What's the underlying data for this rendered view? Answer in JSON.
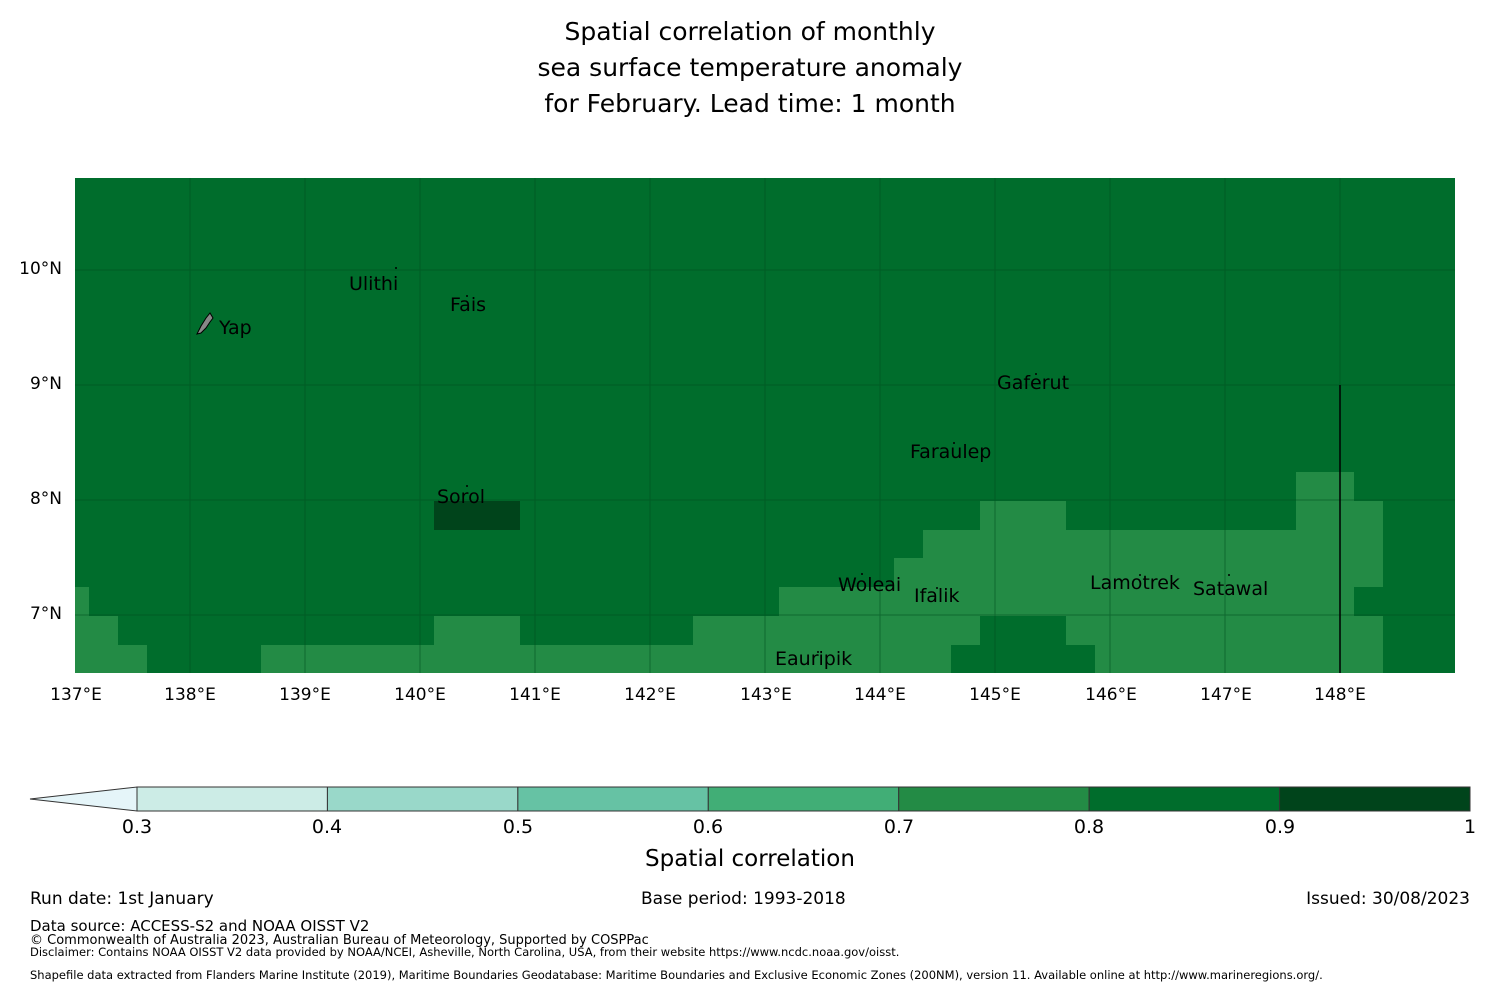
{
  "title": {
    "line1": "Spatial correlation of monthly",
    "line2": "sea surface temperature anomaly",
    "line3": "for February. Lead time: 1 month"
  },
  "map": {
    "lat_labels": [
      "10°N",
      "9°N",
      "8°N",
      "7°N"
    ],
    "lon_labels": [
      "137°E",
      "138°E",
      "139°E",
      "140°E",
      "141°E",
      "142°E",
      "143°E",
      "144°E",
      "145°E",
      "146°E",
      "147°E",
      "148°E"
    ],
    "places": [
      "Ulithi",
      "Fais",
      "Yap",
      "Gaferut",
      "Faraulep",
      "Sorol",
      "Woleai",
      "Ifalik",
      "Lamotrek",
      "Satawal",
      "Eauripik"
    ],
    "colors": {
      "band_08_09": "#006d2c",
      "band_07_08": "#238b45",
      "band_09_1": "#00441b"
    }
  },
  "colorbar": {
    "ticks": [
      "0.3",
      "0.4",
      "0.5",
      "0.6",
      "0.7",
      "0.8",
      "0.9",
      "1"
    ],
    "colors": [
      "#e5f5f9",
      "#ccece6",
      "#99d8c9",
      "#66c2a4",
      "#41ae76",
      "#238b45",
      "#006d2c",
      "#00441b"
    ],
    "label": "Spatial correlation"
  },
  "footer": {
    "run_date": "Run date: 1st January",
    "base_period": "Base period: 1993-2018",
    "issued": "Issued: 30/08/2023",
    "data_source": "Data source: ACCESS-S2 and NOAA OISST V2",
    "copyright": "© Commonwealth of Australia 2023, Australian Bureau of Meteorology, Supported by COSPPac",
    "disclaimer": "Disclaimer: Contains NOAA OISST V2 data provided by NOAA/NCEI, Asheville, North Carolina, USA, from their website https://www.ncdc.noaa.gov/oisst.",
    "shapefile": "Shapefile data extracted from Flanders Marine Institute (2019), Maritime Boundaries Geodatabase: Maritime Boundaries and Exclusive Economic Zones (200NM), version 11. Available online at http://www.marineregions.org/."
  }
}
